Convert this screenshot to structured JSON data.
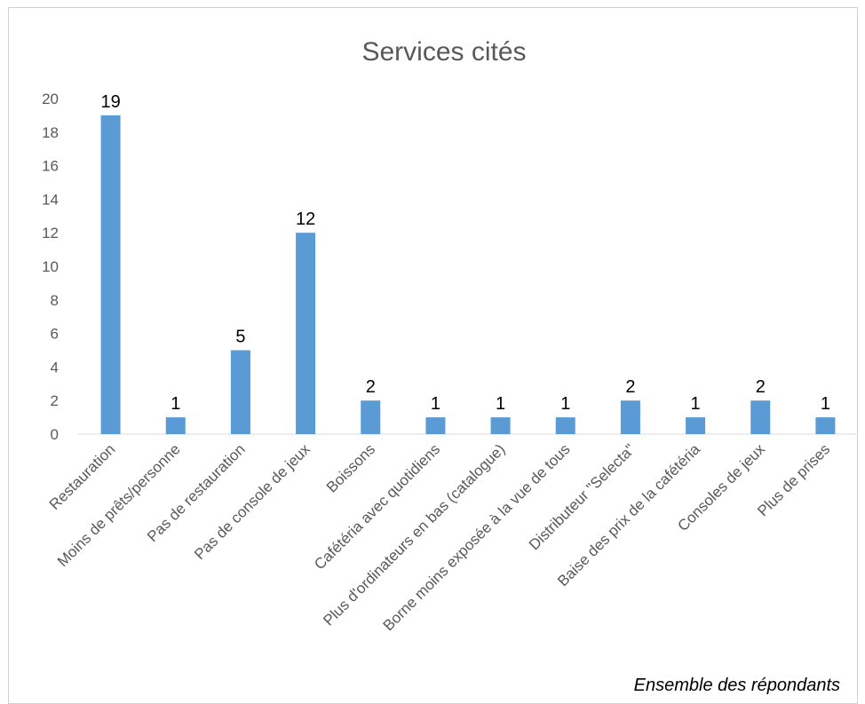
{
  "chart_data": {
    "type": "bar",
    "title": "Services cités",
    "note": "Ensemble des répondants",
    "categories": [
      "Restauration",
      "Moins de prêts/personne",
      "Pas de restauration",
      "Pas de console de jeux",
      "Boissons",
      "Cafétéria avec quotidiens",
      "Plus d'ordinateurs en bas (catalogue)",
      "Borne moins exposée à la vue de tous",
      "Distributeur \"Selecta\"",
      "Baise des prix de la cafétéria",
      "Consoles de jeux",
      "Plus de prises"
    ],
    "values": [
      19,
      1,
      5,
      12,
      2,
      1,
      1,
      1,
      2,
      1,
      2,
      1
    ],
    "ylim": [
      0,
      20
    ],
    "yticks": [
      "0",
      "2",
      "4",
      "6",
      "8",
      "10",
      "12",
      "14",
      "16",
      "18",
      "20"
    ],
    "grid": false,
    "legend": "none",
    "colors": {
      "bar": "#5b9bd5",
      "axis": "#d9d9d9",
      "text": "#595959"
    }
  }
}
